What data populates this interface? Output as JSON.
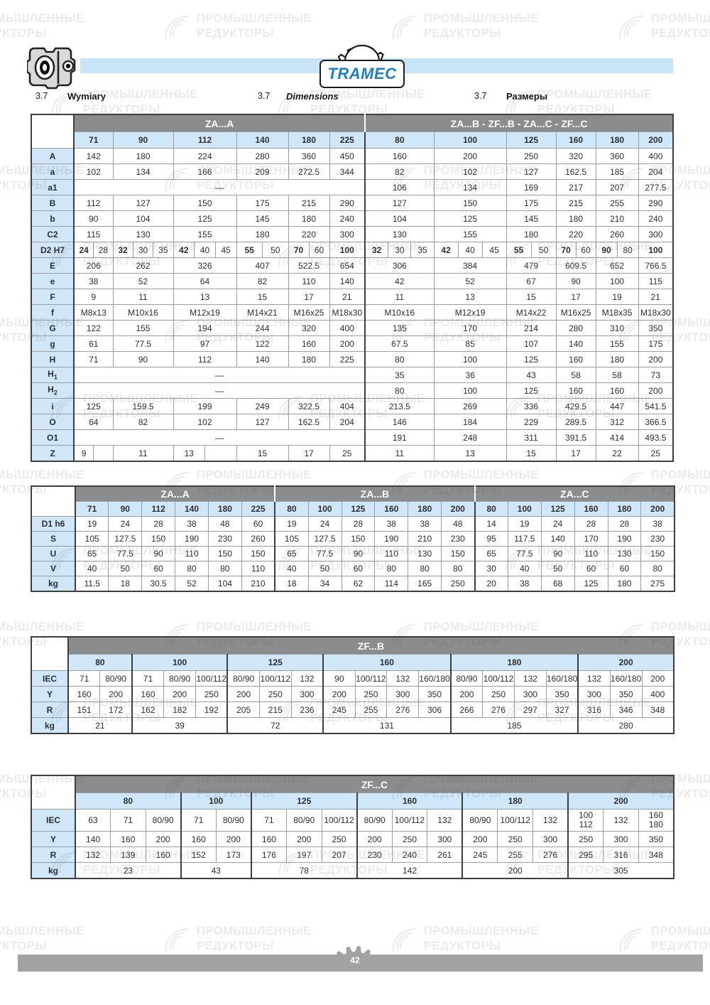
{
  "header": {
    "brand": "TRAMEC"
  },
  "footer": {
    "page_number": "42"
  },
  "watermark": {
    "line1": "ПРОМЫШЛЕННЫЕ",
    "line2": "РЕДУКТОРЫ"
  },
  "colors": {
    "blue_bar": "#c7e3f6",
    "band_gray": "#8b8c8e",
    "cell_blue": "#cfe7f8",
    "footer_gray": "#a1a2a4",
    "logo_blue": "#1b7ec6"
  },
  "section": {
    "items": [
      {
        "num": "3.7",
        "title": "Wymiary"
      },
      {
        "num": "3.7",
        "title": "Dimensions"
      },
      {
        "num": "3.7",
        "title": "Размеры"
      }
    ]
  },
  "table1": {
    "band_left": "ZA...A",
    "band_right": "ZA...B - ZF...B - ZA...C - ZF...C",
    "cols_left": [
      "71",
      "90",
      "112",
      "140",
      "180",
      "225"
    ],
    "cols_right": [
      "80",
      "100",
      "125",
      "160",
      "180",
      "200"
    ],
    "dash": "—",
    "rows": [
      {
        "h": "A",
        "left": [
          "142",
          "180",
          "224",
          "280",
          "360",
          "450"
        ],
        "right": [
          "160",
          "200",
          "250",
          "320",
          "360",
          "400"
        ]
      },
      {
        "h": "a",
        "left": [
          "102",
          "134",
          "166",
          "209",
          "272.5",
          "344"
        ],
        "right": [
          "82",
          "102",
          "127",
          "162.5",
          "185",
          "204"
        ]
      },
      {
        "h": "a1",
        "left": "dash",
        "right": [
          "106",
          "134",
          "169",
          "217",
          "207",
          "277.5"
        ]
      },
      {
        "h": "B",
        "left": [
          "112",
          "127",
          "150",
          "175",
          "215",
          "290"
        ],
        "right": [
          "127",
          "150",
          "175",
          "215",
          "255",
          "290"
        ]
      },
      {
        "h": "b",
        "left": [
          "90",
          "104",
          "125",
          "145",
          "180",
          "240"
        ],
        "right": [
          "104",
          "125",
          "145",
          "180",
          "210",
          "240"
        ]
      },
      {
        "h": "C2",
        "left": [
          "115",
          "130",
          "155",
          "180",
          "220",
          "300"
        ],
        "right": [
          "130",
          "155",
          "180",
          "220",
          "260",
          "300"
        ]
      },
      {
        "h": "D2 H7",
        "bold_first": true,
        "left": [
          [
            "24",
            "28"
          ],
          [
            "32",
            "30",
            "35"
          ],
          [
            "42",
            "40",
            "45"
          ],
          [
            "55",
            "50"
          ],
          [
            "70",
            "60"
          ],
          [
            "100"
          ]
        ],
        "right": [
          [
            "32",
            "30",
            "35"
          ],
          [
            "42",
            "40",
            "45"
          ],
          [
            "55",
            "50"
          ],
          [
            "70",
            "60"
          ],
          [
            "90",
            "80"
          ],
          [
            "100"
          ]
        ]
      },
      {
        "h": "E",
        "left": [
          "206",
          "262",
          "326",
          "407",
          "522.5",
          "654"
        ],
        "right": [
          "306",
          "384",
          "479",
          "609.5",
          "652",
          "766.5"
        ]
      },
      {
        "h": "e",
        "left": [
          "38",
          "52",
          "64",
          "82",
          "110",
          "140"
        ],
        "right": [
          "42",
          "52",
          "67",
          "90",
          "100",
          "115"
        ]
      },
      {
        "h": "F",
        "left": [
          "9",
          "11",
          "13",
          "15",
          "17",
          "21"
        ],
        "right": [
          "11",
          "13",
          "15",
          "17",
          "19",
          "21"
        ]
      },
      {
        "h": "f",
        "left": [
          "M8x13",
          "M10x16",
          "M12x19",
          "M14x21",
          "M16x25",
          "M18x30"
        ],
        "right": [
          "M10x16",
          "M12x19",
          "M14x22",
          "M16x25",
          "M18x35",
          "M18x30"
        ]
      },
      {
        "h": "G",
        "left": [
          "122",
          "155",
          "194",
          "244",
          "320",
          "400"
        ],
        "right": [
          "135",
          "170",
          "214",
          "280",
          "310",
          "350"
        ]
      },
      {
        "h": "g",
        "left": [
          "61",
          "77.5",
          "97",
          "122",
          "160",
          "200"
        ],
        "right": [
          "67.5",
          "85",
          "107",
          "140",
          "155",
          "175"
        ]
      },
      {
        "h": "H",
        "left": [
          "71",
          "90",
          "112",
          "140",
          "180",
          "225"
        ],
        "right": [
          "80",
          "100",
          "125",
          "160",
          "180",
          "200"
        ]
      },
      {
        "h": "H",
        "hsub": "1",
        "left": "dash",
        "right": [
          "35",
          "36",
          "43",
          "58",
          "58",
          "73"
        ]
      },
      {
        "h": "H",
        "hsub": "2",
        "left": "dash",
        "right": [
          "80",
          "100",
          "125",
          "160",
          "160",
          "200"
        ]
      },
      {
        "h": "i",
        "left": [
          "125",
          "159.5",
          "199",
          "249",
          "322.5",
          "404"
        ],
        "right": [
          "213.5",
          "269",
          "336",
          "429.5",
          "447",
          "541.5"
        ]
      },
      {
        "h": "O",
        "left": [
          "64",
          "82",
          "102",
          "127",
          "162.5",
          "204"
        ],
        "right": [
          "146",
          "184",
          "229",
          "289.5",
          "312",
          "366.5"
        ]
      },
      {
        "h": "O1",
        "left": "dash",
        "right": [
          "191",
          "248",
          "311",
          "391.5",
          "414",
          "493.5"
        ]
      },
      {
        "h": "Z",
        "left": [
          [
            "9",
            ""
          ],
          [
            "11"
          ],
          [
            "13",
            ""
          ],
          [
            "15"
          ],
          [
            "17"
          ],
          [
            "25"
          ]
        ],
        "right": [
          "11",
          "13",
          "15",
          "17",
          "22",
          "25"
        ]
      }
    ]
  },
  "table2": {
    "groups": [
      {
        "label": "ZA...A",
        "cols": [
          "71",
          "90",
          "112",
          "140",
          "180",
          "225"
        ]
      },
      {
        "label": "ZA...B",
        "cols": [
          "80",
          "100",
          "125",
          "160",
          "180",
          "200"
        ]
      },
      {
        "label": "ZA...C",
        "cols": [
          "80",
          "100",
          "125",
          "160",
          "180",
          "200"
        ]
      }
    ],
    "rows": [
      {
        "h": "D1 h6",
        "values": [
          [
            "19",
            "24",
            "28",
            "38",
            "48",
            "60"
          ],
          [
            "19",
            "24",
            "28",
            "38",
            "38",
            "48"
          ],
          [
            "14",
            "19",
            "24",
            "28",
            "28",
            "38"
          ]
        ]
      },
      {
        "h": "S",
        "values": [
          [
            "105",
            "127.5",
            "150",
            "190",
            "230",
            "260"
          ],
          [
            "105",
            "127.5",
            "150",
            "190",
            "210",
            "230"
          ],
          [
            "95",
            "117.5",
            "140",
            "170",
            "190",
            "230"
          ]
        ]
      },
      {
        "h": "U",
        "values": [
          [
            "65",
            "77.5",
            "90",
            "110",
            "150",
            "150"
          ],
          [
            "65",
            "77.5",
            "90",
            "110",
            "130",
            "150"
          ],
          [
            "65",
            "77.5",
            "90",
            "110",
            "130",
            "150"
          ]
        ]
      },
      {
        "h": "V",
        "values": [
          [
            "40",
            "50",
            "60",
            "80",
            "80",
            "110"
          ],
          [
            "40",
            "50",
            "60",
            "80",
            "80",
            "80"
          ],
          [
            "30",
            "40",
            "50",
            "60",
            "60",
            "80"
          ]
        ]
      },
      {
        "h": "kg",
        "values": [
          [
            "11.5",
            "18",
            "30.5",
            "52",
            "104",
            "210"
          ],
          [
            "18",
            "34",
            "62",
            "114",
            "165",
            "250"
          ],
          [
            "20",
            "38",
            "68",
            "125",
            "180",
            "275"
          ]
        ]
      }
    ]
  },
  "table3": {
    "band": "ZF...B",
    "row_labels": {
      "iec": "IEC",
      "y": "Y",
      "r": "R",
      "kg": "kg"
    },
    "groups": [
      {
        "size": "80",
        "iec": [
          "71",
          "80/90"
        ],
        "y": [
          "160",
          "200"
        ],
        "r": [
          "151",
          "172"
        ],
        "kg": "21"
      },
      {
        "size": "100",
        "iec": [
          "71",
          "80/90",
          "100/112"
        ],
        "y": [
          "160",
          "200",
          "250"
        ],
        "r": [
          "162",
          "182",
          "192"
        ],
        "kg": "39"
      },
      {
        "size": "125",
        "iec": [
          "80/90",
          "100/112",
          "132"
        ],
        "y": [
          "200",
          "250",
          "300"
        ],
        "r": [
          "205",
          "215",
          "236"
        ],
        "kg": "72"
      },
      {
        "size": "160",
        "iec": [
          "90",
          "100/112",
          "132",
          "160/180"
        ],
        "y": [
          "200",
          "250",
          "300",
          "350"
        ],
        "r": [
          "245",
          "255",
          "276",
          "306"
        ],
        "kg": "131"
      },
      {
        "size": "180",
        "iec": [
          "80/90",
          "100/112",
          "132",
          "160/180"
        ],
        "y": [
          "200",
          "250",
          "300",
          "350"
        ],
        "r": [
          "266",
          "276",
          "297",
          "327"
        ],
        "kg": "185"
      },
      {
        "size": "200",
        "iec": [
          "132",
          "160/180",
          "200"
        ],
        "y": [
          "300",
          "350",
          "400"
        ],
        "r": [
          "316",
          "346",
          "348"
        ],
        "kg": "280"
      }
    ]
  },
  "table4": {
    "band": "ZF...C",
    "row_labels": {
      "iec": "IEC",
      "y": "Y",
      "r": "R",
      "kg": "kg"
    },
    "groups": [
      {
        "size": "80",
        "iec": [
          "63",
          "71",
          "80/90"
        ],
        "y": [
          "140",
          "160",
          "200"
        ],
        "r": [
          "132",
          "139",
          "160"
        ],
        "kg": "23"
      },
      {
        "size": "100",
        "iec": [
          "71",
          "80/90"
        ],
        "y": [
          "160",
          "200"
        ],
        "r": [
          "152",
          "173"
        ],
        "kg": "43"
      },
      {
        "size": "125",
        "iec": [
          "71",
          "80/90",
          "100/112"
        ],
        "y": [
          "160",
          "200",
          "250"
        ],
        "r": [
          "176",
          "197",
          "207"
        ],
        "kg": "78"
      },
      {
        "size": "160",
        "iec": [
          "80/90",
          "100/112",
          "132"
        ],
        "y": [
          "200",
          "250",
          "300"
        ],
        "r": [
          "230",
          "240",
          "261"
        ],
        "kg": "142"
      },
      {
        "size": "180",
        "iec": [
          "80/90",
          "100/112",
          "132"
        ],
        "y": [
          "200",
          "250",
          "300"
        ],
        "r": [
          "245",
          "255",
          "276"
        ],
        "kg": "200"
      },
      {
        "size": "200",
        "iec": [
          "100\n112",
          "132",
          "160\n180"
        ],
        "y": [
          "250",
          "300",
          "350"
        ],
        "r": [
          "295",
          "316",
          "348"
        ],
        "kg": "305"
      }
    ]
  }
}
